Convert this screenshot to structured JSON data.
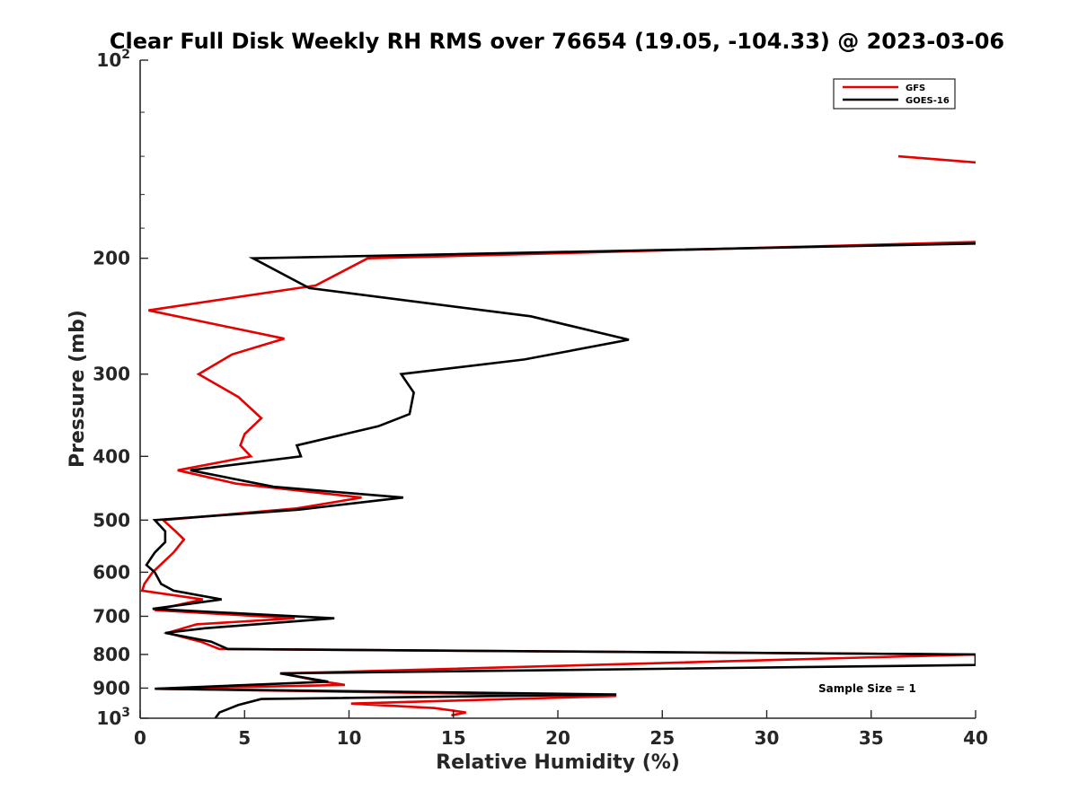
{
  "chart_data": {
    "type": "line",
    "title": "Clear Full Disk Weekly RH RMS over 76654 (19.05, -104.33) @ 2023-03-06",
    "xlabel": "Relative Humidity (%)",
    "ylabel": "Pressure (mb)",
    "xlim": [
      0,
      40
    ],
    "ylim": [
      100,
      1000
    ],
    "yscale": "log",
    "y_reversed": true,
    "x_ticks": [
      "0",
      "5",
      "10",
      "15",
      "20",
      "25",
      "30",
      "35",
      "40"
    ],
    "x_tick_values": [
      0,
      5,
      10,
      15,
      20,
      25,
      30,
      35,
      40
    ],
    "y_ticks": [
      "200",
      "300",
      "400",
      "500",
      "600",
      "700",
      "800",
      "900"
    ],
    "y_tick_values": [
      200,
      300,
      400,
      500,
      600,
      700,
      800,
      900
    ],
    "y_top_label": {
      "base": "10",
      "exp": "2"
    },
    "y_bottom_label": {
      "base": "10",
      "exp": "3"
    },
    "legend": {
      "placement": "top-right",
      "entries": [
        "GFS",
        "GOES-16"
      ]
    },
    "annotation": "Sample Size = 1",
    "series": [
      {
        "name": "GFS",
        "color": "#e60000",
        "segments": [
          [
            [
              36.3,
              140
            ],
            [
              40,
              143
            ]
          ],
          [
            [
              40,
              189
            ],
            [
              10.9,
              200
            ],
            [
              8.4,
              220
            ],
            [
              0.4,
              240
            ],
            [
              6.9,
              265
            ],
            [
              4.4,
              280
            ],
            [
              2.8,
              300
            ],
            [
              4.7,
              325
            ],
            [
              5.8,
              350
            ],
            [
              5.0,
              370
            ],
            [
              4.8,
              385
            ],
            [
              5.3,
              400
            ],
            [
              1.8,
              420
            ],
            [
              4.6,
              440
            ],
            [
              10.6,
              462
            ],
            [
              7.5,
              480
            ],
            [
              1.1,
              500
            ],
            [
              1.7,
              520
            ],
            [
              2.1,
              535
            ],
            [
              1.6,
              560
            ],
            [
              0.6,
              600
            ],
            [
              0.2,
              625
            ],
            [
              0.1,
              640
            ],
            [
              3.0,
              660
            ],
            [
              0.7,
              685
            ],
            [
              7.4,
              705
            ],
            [
              2.7,
              720
            ],
            [
              1.3,
              742
            ],
            [
              2.9,
              765
            ],
            [
              3.8,
              785
            ],
            [
              40,
              800
            ],
            [
              6.8,
              855
            ],
            [
              8.5,
              877
            ],
            [
              9.8,
              890
            ],
            [
              0.8,
              902
            ],
            [
              22.8,
              925
            ],
            [
              10.1,
              950
            ],
            [
              14.1,
              965
            ],
            [
              15.6,
              980
            ],
            [
              14.9,
              990
            ]
          ]
        ]
      },
      {
        "name": "GOES-16",
        "color": "#000000",
        "segments": [
          [
            [
              40,
              190
            ],
            [
              5.4,
              200
            ],
            [
              8.1,
              222
            ],
            [
              18.7,
              245
            ],
            [
              23.4,
              266
            ],
            [
              18.4,
              285
            ],
            [
              12.5,
              300
            ],
            [
              13.1,
              320
            ],
            [
              12.9,
              345
            ],
            [
              11.4,
              360
            ],
            [
              7.5,
              385
            ],
            [
              7.7,
              400
            ],
            [
              2.4,
              420
            ],
            [
              6.4,
              445
            ],
            [
              12.6,
              462
            ],
            [
              7.6,
              482
            ],
            [
              0.7,
              500
            ],
            [
              1.2,
              520
            ],
            [
              1.2,
              540
            ],
            [
              0.7,
              560
            ],
            [
              0.3,
              585
            ],
            [
              0.7,
              600
            ],
            [
              1.0,
              625
            ],
            [
              1.6,
              640
            ],
            [
              3.9,
              660
            ],
            [
              0.6,
              682
            ],
            [
              9.3,
              705
            ],
            [
              3.1,
              730
            ],
            [
              1.2,
              742
            ],
            [
              3.4,
              765
            ],
            [
              4.2,
              785
            ],
            [
              40,
              800
            ],
            [
              40,
              830
            ],
            [
              6.7,
              855
            ],
            [
              9.0,
              880
            ],
            [
              0.7,
              902
            ],
            [
              22.8,
              920
            ],
            [
              5.8,
              935
            ],
            [
              4.7,
              955
            ],
            [
              3.8,
              980
            ],
            [
              3.6,
              1000
            ]
          ]
        ]
      }
    ]
  }
}
